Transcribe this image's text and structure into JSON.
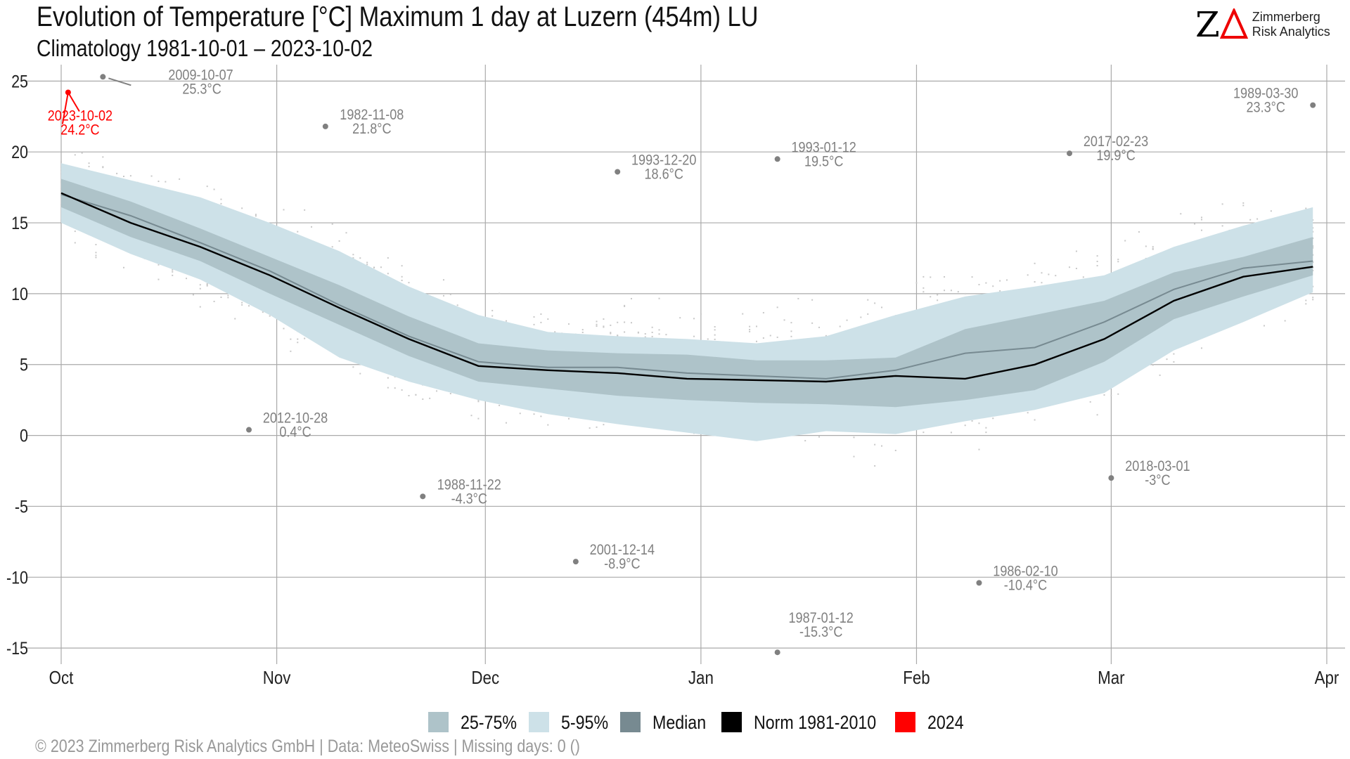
{
  "header": {
    "title": "Evolution of Temperature [°C] Maximum 1 day at Luzern (454m) LU",
    "subtitle": "Climatology 1981-10-01 – 2023-10-02",
    "logo_mark": "ZΔ",
    "logo_line1": "Zimmerberg",
    "logo_line2": "Risk Analytics"
  },
  "footer": "©  2023 Zimmerberg Risk Analytics GmbH | Data: MeteoSwiss | Missing days: 0 ()",
  "chart_data": {
    "type": "area",
    "title": "Evolution of Temperature [°C] Maximum 1 day at Luzern (454m) LU",
    "xlabel": "",
    "ylabel": "°C",
    "ylim": [
      -16,
      26
    ],
    "xlim_days": [
      0,
      182
    ],
    "grid": true,
    "legend_position": "bottom",
    "x_ticks": [
      {
        "label": "Oct",
        "day": 0
      },
      {
        "label": "Nov",
        "day": 31
      },
      {
        "label": "Dec",
        "day": 61
      },
      {
        "label": "Jan",
        "day": 92
      },
      {
        "label": "Feb",
        "day": 123
      },
      {
        "label": "Mar",
        "day": 151
      },
      {
        "label": "Apr",
        "day": 182
      }
    ],
    "y_ticks": [
      "25",
      "20",
      "15",
      "10",
      "5",
      "0",
      "-5",
      "-10",
      "-15"
    ],
    "days": [
      0,
      10,
      20,
      30,
      40,
      50,
      60,
      70,
      80,
      90,
      100,
      110,
      120,
      130,
      140,
      150,
      160,
      170,
      180
    ],
    "series": [
      {
        "name": "5-95%",
        "color": "#cde1e8",
        "low": [
          15.0,
          12.8,
          11.0,
          8.5,
          5.5,
          3.8,
          2.5,
          1.5,
          0.8,
          0.2,
          -0.4,
          0.3,
          0.1,
          1.0,
          1.8,
          3.0,
          6.0,
          8.0,
          10.1
        ],
        "high": [
          19.2,
          18.0,
          16.8,
          15.0,
          13.0,
          10.5,
          8.5,
          7.3,
          7.0,
          6.8,
          6.5,
          7.0,
          8.5,
          9.8,
          10.5,
          11.3,
          13.3,
          14.8,
          16.1
        ]
      },
      {
        "name": "25-75%",
        "color": "#aec3c9",
        "low": [
          16.1,
          14.0,
          12.3,
          10.0,
          7.8,
          5.6,
          3.8,
          3.3,
          2.8,
          2.5,
          2.3,
          2.2,
          2.0,
          2.5,
          3.2,
          5.2,
          8.2,
          9.8,
          11.3
        ],
        "high": [
          18.1,
          16.5,
          14.6,
          12.6,
          10.6,
          8.4,
          6.5,
          6.0,
          5.8,
          5.7,
          5.3,
          5.3,
          5.5,
          7.5,
          8.5,
          9.5,
          11.5,
          12.6,
          14.0
        ]
      },
      {
        "name": "Median",
        "color": "#778a91",
        "values": [
          17.0,
          15.5,
          13.6,
          11.6,
          9.2,
          7.0,
          5.2,
          4.8,
          4.8,
          4.4,
          4.2,
          4.0,
          4.6,
          5.8,
          6.2,
          8.0,
          10.3,
          11.8,
          12.3
        ]
      },
      {
        "name": "Norm 1981-2010",
        "color": "#000000",
        "values": [
          17.1,
          15.0,
          13.3,
          11.3,
          9.0,
          6.8,
          4.9,
          4.6,
          4.4,
          4.0,
          3.9,
          3.8,
          4.2,
          4.0,
          5.0,
          6.8,
          9.5,
          11.2,
          11.9
        ]
      },
      {
        "name": "2024",
        "color": "#ff0000",
        "values": []
      }
    ],
    "records": [
      {
        "date": "2009-10-07",
        "label": "25.3°C",
        "day": 6,
        "value": 25.3,
        "current": false
      },
      {
        "date": "2023-10-02",
        "label": "24.2°C",
        "day": 1,
        "value": 24.2,
        "current": true
      },
      {
        "date": "1982-11-08",
        "label": "21.8°C",
        "day": 38,
        "value": 21.8,
        "current": false
      },
      {
        "date": "2012-10-28",
        "label": "0.4°C",
        "day": 27,
        "value": 0.4,
        "current": false
      },
      {
        "date": "1988-11-22",
        "label": "-4.3°C",
        "day": 52,
        "value": -4.3,
        "current": false
      },
      {
        "date": "2001-12-14",
        "label": "-8.9°C",
        "day": 74,
        "value": -8.9,
        "current": false
      },
      {
        "date": "1993-12-20",
        "label": "18.6°C",
        "day": 80,
        "value": 18.6,
        "current": false
      },
      {
        "date": "1993-01-12",
        "label": "19.5°C",
        "day": 103,
        "value": 19.5,
        "current": false
      },
      {
        "date": "1987-01-12",
        "label": "-15.3°C",
        "day": 103,
        "value": -15.3,
        "current": false
      },
      {
        "date": "1986-02-10",
        "label": "-10.4°C",
        "day": 132,
        "value": -10.4,
        "current": false
      },
      {
        "date": "2017-02-23",
        "label": "19.9°C",
        "day": 145,
        "value": 19.9,
        "current": false
      },
      {
        "date": "2018-03-01",
        "label": "-3°C",
        "day": 151,
        "value": -3.0,
        "current": false
      },
      {
        "date": "1989-03-30",
        "label": "23.3°C",
        "day": 180,
        "value": 23.3,
        "current": false
      }
    ],
    "legend": [
      {
        "label": "25-75%",
        "color": "#aec3c9"
      },
      {
        "label": "5-95%",
        "color": "#cde1e8"
      },
      {
        "label": "Median",
        "color": "#778a91"
      },
      {
        "label": "Norm 1981-2010",
        "color": "#000000"
      },
      {
        "label": "2024",
        "color": "#ff0000"
      }
    ]
  }
}
